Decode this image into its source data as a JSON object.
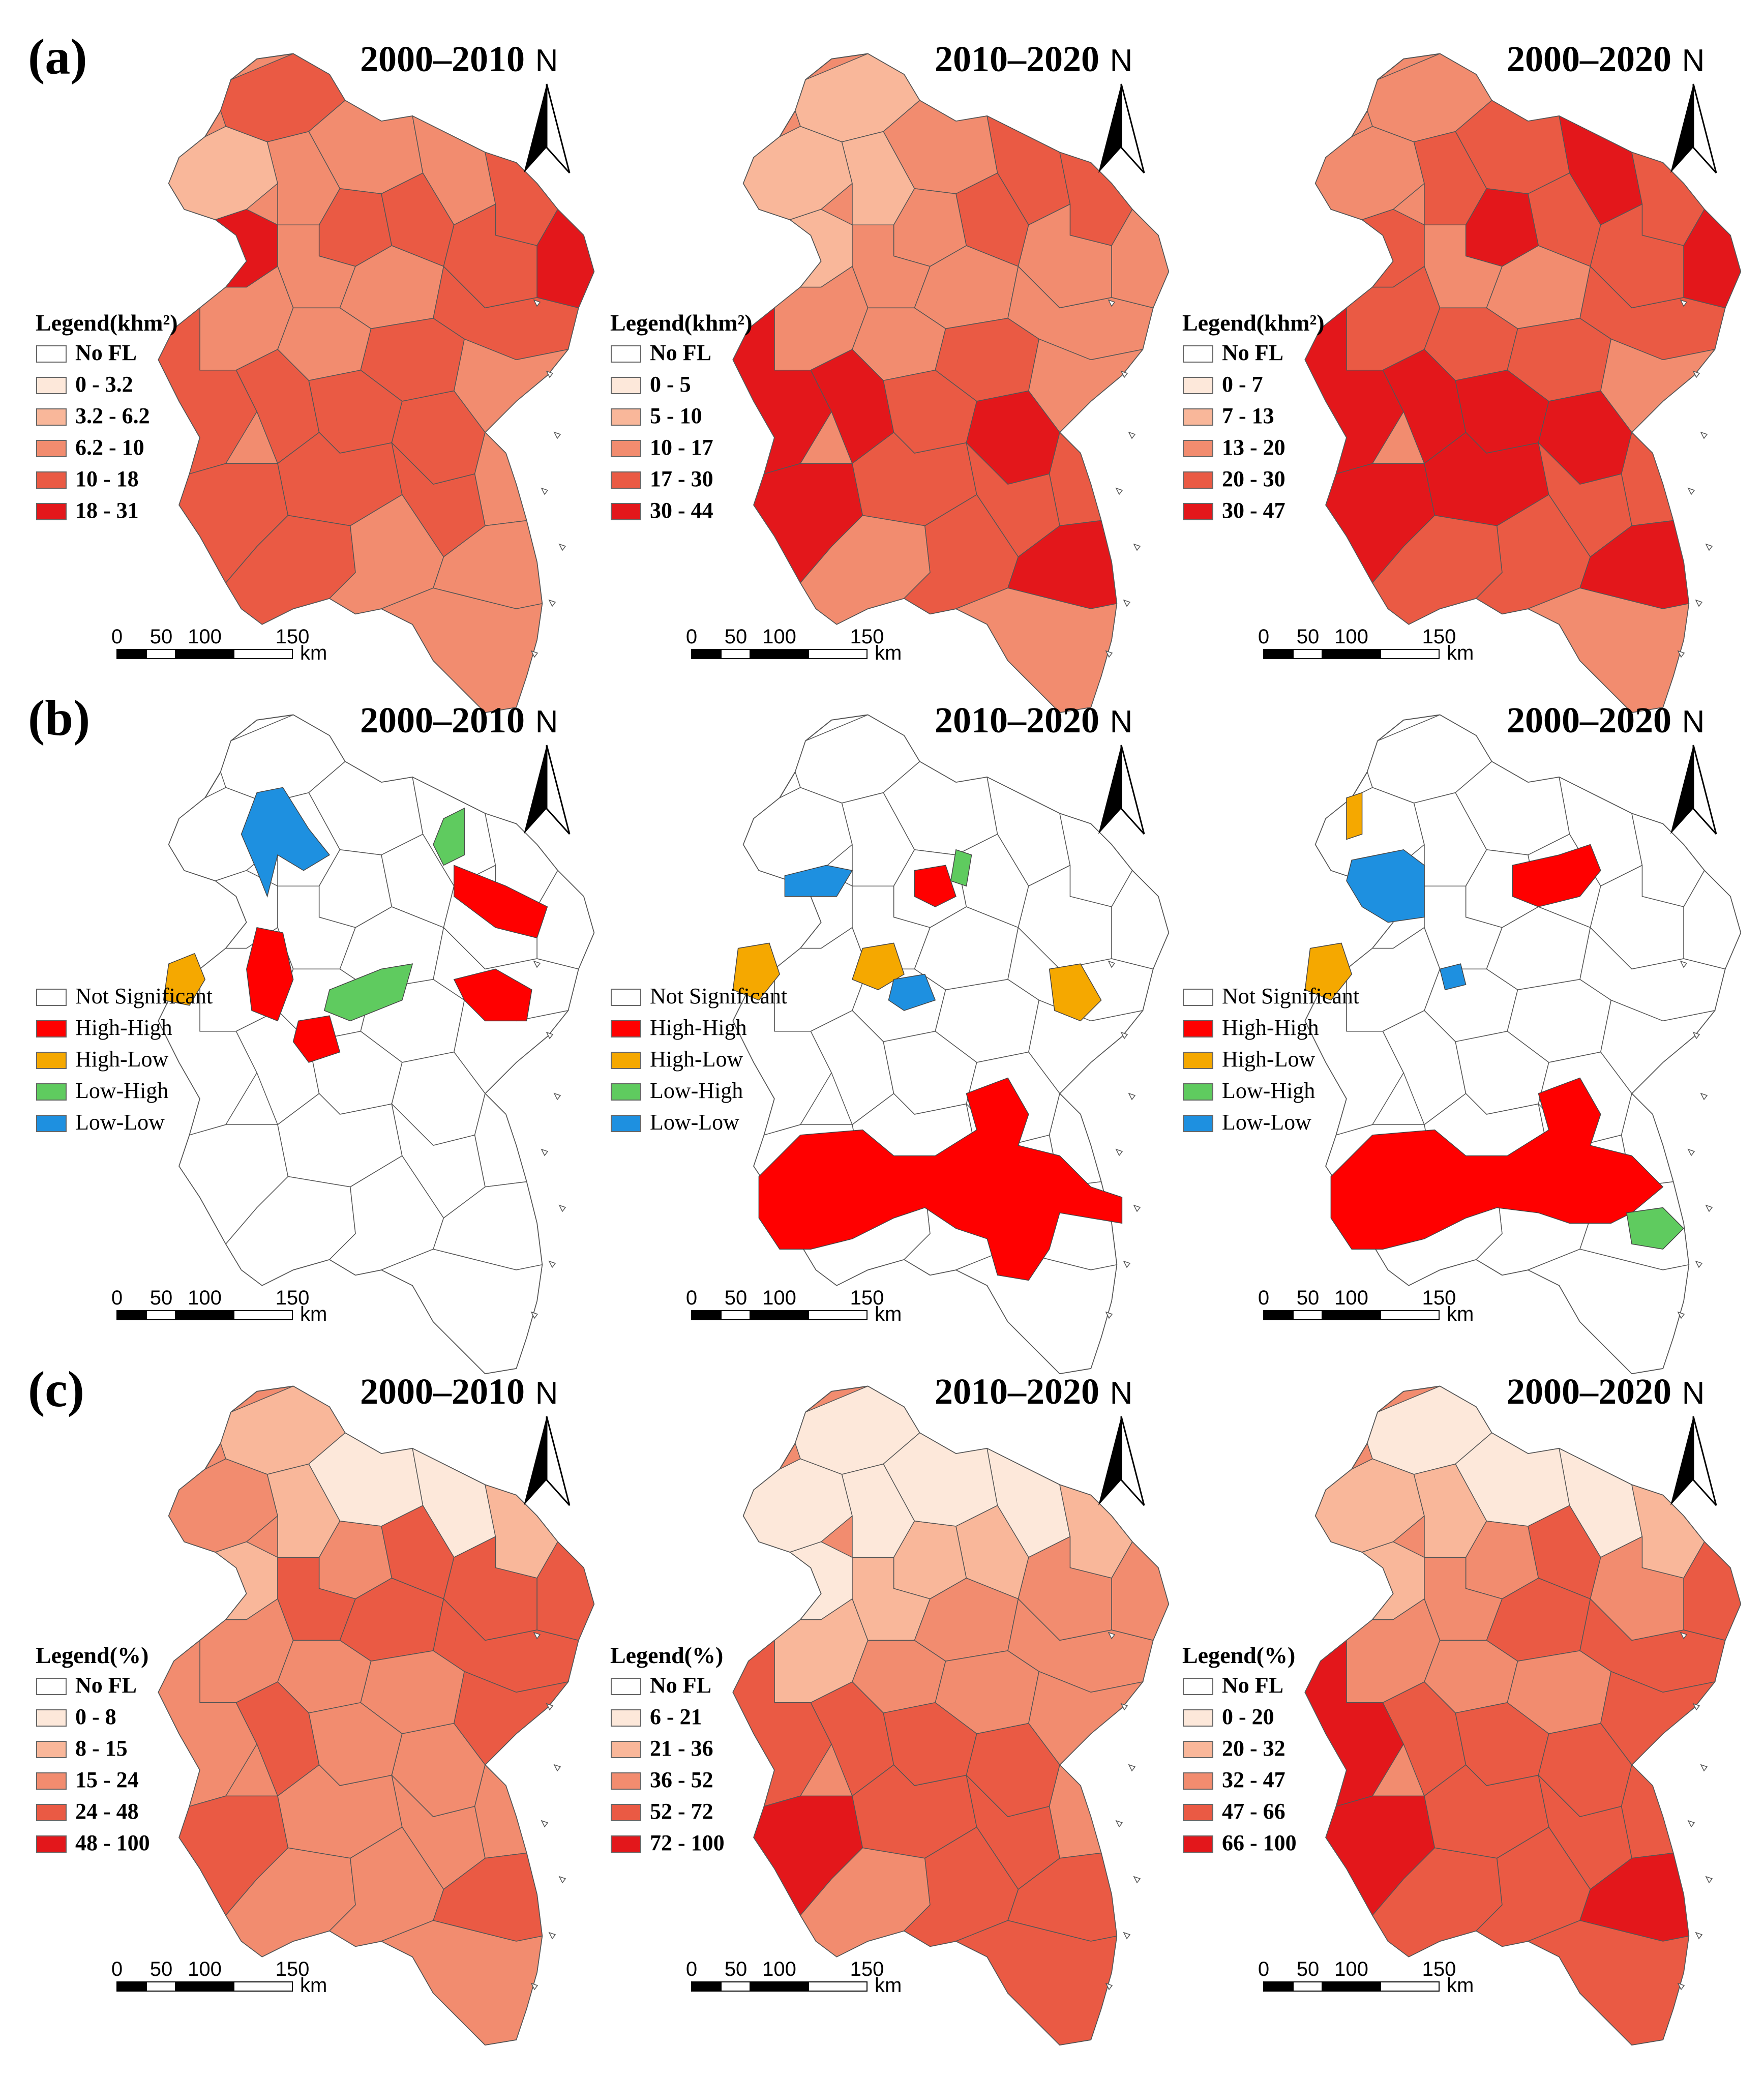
{
  "rows": [
    {
      "label": "(a)",
      "kind": "choropleth",
      "panels": [
        {
          "title": "2000–2010",
          "legend_title": "Legend(khm²)",
          "classes": [
            "No FL",
            "0 - 3.2",
            "3.2 - 6.2",
            "6.2 - 10",
            "10 - 18",
            "18 - 31"
          ]
        },
        {
          "title": "2010–2020",
          "legend_title": "Legend(khm²)",
          "classes": [
            "No FL",
            "0 - 5",
            "5 - 10",
            "10 - 17",
            "17 - 30",
            "30 - 44"
          ]
        },
        {
          "title": "2000–2020",
          "legend_title": "Legend(khm²)",
          "classes": [
            "No FL",
            "0 - 7",
            "7 - 13",
            "13 - 20",
            "20 - 30",
            "30 - 47"
          ]
        }
      ]
    },
    {
      "label": "(b)",
      "kind": "lisa",
      "panels": [
        {
          "title": "2000–2010",
          "legend_title": "",
          "classes": [
            "Not Significant",
            "High-High",
            "High-Low",
            "Low-High",
            "Low-Low"
          ]
        },
        {
          "title": "2010–2020",
          "legend_title": "",
          "classes": [
            "Not Significant",
            "High-High",
            "High-Low",
            "Low-High",
            "Low-Low"
          ]
        },
        {
          "title": "2000–2020",
          "legend_title": "",
          "classes": [
            "Not Significant",
            "High-High",
            "High-Low",
            "Low-High",
            "Low-Low"
          ]
        }
      ]
    },
    {
      "label": "(c)",
      "kind": "choropleth",
      "panels": [
        {
          "title": "2000–2010",
          "legend_title": "Legend(%)",
          "classes": [
            "No FL",
            "0 - 8",
            "8 - 15",
            "15 - 24",
            "24 - 48",
            "48 - 100"
          ]
        },
        {
          "title": "2010–2020",
          "legend_title": "Legend(%)",
          "classes": [
            "No FL",
            "6 - 21",
            "21 - 36",
            "36 - 52",
            "52 - 72",
            "72 - 100"
          ]
        },
        {
          "title": "2000–2020",
          "legend_title": "Legend(%)",
          "classes": [
            "No FL",
            "0 - 20",
            "20 - 32",
            "32 - 47",
            "47 - 66",
            "66 - 100"
          ]
        }
      ]
    }
  ],
  "colors": {
    "choropleth": [
      "#ffffff",
      "#fde8da",
      "#f9b79a",
      "#f28c6f",
      "#ea5a44",
      "#e3171b"
    ],
    "lisa": {
      "Not Significant": "#ffffff",
      "High-High": "#ff0000",
      "High-Low": "#f5a800",
      "Low-High": "#5fcb5f",
      "Low-Low": "#1e90e0"
    }
  },
  "north_label": "N",
  "scale_bar": {
    "ticks": [
      "0",
      "50",
      "100",
      "150"
    ],
    "unit": "km"
  }
}
